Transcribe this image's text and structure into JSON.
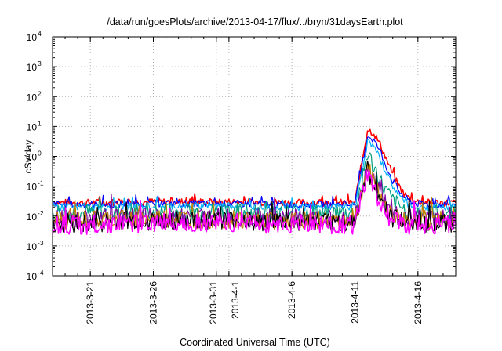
{
  "chart_data": {
    "type": "line",
    "title": "/data/run/goesPlots/archive/2013-04-17/flux/../bryn/31daysEarth.plot",
    "xlabel": "Coordinated Universal Time (UTC)",
    "ylabel": "cSv/day",
    "yscale": "log",
    "ylim": [
      0.0001,
      10000
    ],
    "grid": true,
    "x_start": "2013-03-18",
    "x_end": "2013-04-19",
    "x_ticks": [
      {
        "date": "2013-03-21",
        "label": "2013-3-21"
      },
      {
        "date": "2013-03-26",
        "label": "2013-3-26"
      },
      {
        "date": "2013-03-31",
        "label": "2013-3-31"
      },
      {
        "date": "2013-04-01",
        "label": "2013-4-1"
      },
      {
        "date": "2013-04-06",
        "label": "2013-4-6"
      },
      {
        "date": "2013-04-11",
        "label": "2013-4-11"
      },
      {
        "date": "2013-04-16",
        "label": "2013-4-16"
      }
    ],
    "y_ticks": [
      {
        "value": 0.0001,
        "base": "10",
        "exp": "-4"
      },
      {
        "value": 0.001,
        "base": "10",
        "exp": "-3"
      },
      {
        "value": 0.01,
        "base": "10",
        "exp": "-2"
      },
      {
        "value": 0.1,
        "base": "10",
        "exp": "-1"
      },
      {
        "value": 1,
        "base": "10",
        "exp": "0"
      },
      {
        "value": 10,
        "base": "10",
        "exp": "1"
      },
      {
        "value": 100,
        "base": "10",
        "exp": "2"
      },
      {
        "value": 1000,
        "base": "10",
        "exp": "3"
      },
      {
        "value": 10000,
        "base": "10",
        "exp": "4"
      }
    ],
    "series": [
      {
        "color": "#ff0000",
        "x": [
          "2013-03-18",
          "2013-03-21",
          "2013-03-26",
          "2013-04-01",
          "2013-04-06",
          "2013-04-11",
          "2013-04-12",
          "2013-04-12T12:00",
          "2013-04-13",
          "2013-04-13T12:00",
          "2013-04-14",
          "2013-04-14T12:00",
          "2013-04-15",
          "2013-04-15T12:00",
          "2013-04-16",
          "2013-04-17",
          "2013-04-18",
          "2013-04-19"
        ],
        "y": [
          0.028,
          0.028,
          0.03,
          0.03,
          0.028,
          0.028,
          8,
          6,
          2.5,
          0.8,
          0.25,
          0.1,
          0.05,
          0.035,
          0.03,
          0.028,
          0.028,
          0.028
        ]
      },
      {
        "color": "#0000ff",
        "x": [
          "2013-03-18",
          "2013-03-21",
          "2013-03-26",
          "2013-04-01",
          "2013-04-06",
          "2013-04-11",
          "2013-04-12",
          "2013-04-12T12:00",
          "2013-04-13",
          "2013-04-13T12:00",
          "2013-04-14",
          "2013-04-14T12:00",
          "2013-04-15",
          "2013-04-15T12:00",
          "2013-04-16",
          "2013-04-17",
          "2013-04-18",
          "2013-04-19"
        ],
        "y": [
          0.025,
          0.024,
          0.026,
          0.026,
          0.024,
          0.024,
          5,
          3.5,
          1.5,
          0.45,
          0.15,
          0.07,
          0.04,
          0.03,
          0.026,
          0.024,
          0.024,
          0.024
        ]
      },
      {
        "color": "#00b0ff",
        "x": [
          "2013-03-18",
          "2013-03-21",
          "2013-03-26",
          "2013-04-01",
          "2013-04-06",
          "2013-04-11",
          "2013-04-12",
          "2013-04-12T12:00",
          "2013-04-13",
          "2013-04-13T12:00",
          "2013-04-14",
          "2013-04-14T12:00",
          "2013-04-15",
          "2013-04-15T12:00",
          "2013-04-16",
          "2013-04-17",
          "2013-04-18",
          "2013-04-19"
        ],
        "y": [
          0.02,
          0.02,
          0.022,
          0.022,
          0.02,
          0.02,
          3,
          2,
          0.8,
          0.3,
          0.1,
          0.05,
          0.03,
          0.022,
          0.02,
          0.02,
          0.02,
          0.02
        ]
      },
      {
        "color": "#00a080",
        "x": [
          "2013-03-18",
          "2013-03-21",
          "2013-03-26",
          "2013-04-01",
          "2013-04-06",
          "2013-04-11",
          "2013-04-12",
          "2013-04-12T12:00",
          "2013-04-13",
          "2013-04-13T12:00",
          "2013-04-14",
          "2013-04-14T12:00",
          "2013-04-15",
          "2013-04-15T12:00",
          "2013-04-16",
          "2013-04-17",
          "2013-04-18",
          "2013-04-19"
        ],
        "y": [
          0.012,
          0.012,
          0.013,
          0.013,
          0.012,
          0.012,
          1.2,
          0.4,
          0.15,
          0.06,
          0.03,
          0.02,
          0.015,
          0.013,
          0.012,
          0.012,
          0.012,
          0.012
        ]
      },
      {
        "color": "#8000a0",
        "x": [
          "2013-03-18",
          "2013-03-21",
          "2013-03-26",
          "2013-04-01",
          "2013-04-06",
          "2013-04-11",
          "2013-04-12",
          "2013-04-12T12:00",
          "2013-04-13",
          "2013-04-13T12:00",
          "2013-04-14",
          "2013-04-14T12:00",
          "2013-04-15",
          "2013-04-15T12:00",
          "2013-04-16",
          "2013-04-17",
          "2013-04-18",
          "2013-04-19"
        ],
        "y": [
          0.008,
          0.008,
          0.009,
          0.009,
          0.008,
          0.008,
          0.5,
          0.2,
          0.06,
          0.025,
          0.012,
          0.009,
          0.008,
          0.008,
          0.008,
          0.008,
          0.008,
          0.008
        ]
      },
      {
        "color": "#c08000",
        "x": [
          "2013-03-18",
          "2013-03-21",
          "2013-03-26",
          "2013-04-01",
          "2013-04-06",
          "2013-04-11",
          "2013-04-12",
          "2013-04-12T12:00",
          "2013-04-13",
          "2013-04-13T12:00",
          "2013-04-14",
          "2013-04-14T12:00",
          "2013-04-15",
          "2013-04-15T12:00",
          "2013-04-16",
          "2013-04-17",
          "2013-04-18",
          "2013-04-19"
        ],
        "y": [
          0.007,
          0.007,
          0.008,
          0.008,
          0.007,
          0.007,
          0.4,
          0.15,
          0.05,
          0.02,
          0.01,
          0.008,
          0.007,
          0.007,
          0.007,
          0.007,
          0.007,
          0.007
        ]
      },
      {
        "color": "#000000",
        "x": [
          "2013-03-18",
          "2013-03-21",
          "2013-03-26",
          "2013-04-01",
          "2013-04-06",
          "2013-04-11",
          "2013-04-12",
          "2013-04-12T12:00",
          "2013-04-13",
          "2013-04-13T12:00",
          "2013-04-14",
          "2013-04-14T12:00",
          "2013-04-15",
          "2013-04-15T12:00",
          "2013-04-16",
          "2013-04-17",
          "2013-04-18",
          "2013-04-19"
        ],
        "y": [
          0.006,
          0.006,
          0.007,
          0.007,
          0.006,
          0.006,
          0.35,
          0.12,
          0.04,
          0.015,
          0.008,
          0.007,
          0.006,
          0.006,
          0.006,
          0.006,
          0.006,
          0.006
        ]
      },
      {
        "color": "#ff00ff",
        "x": [
          "2013-03-18",
          "2013-03-21",
          "2013-03-26",
          "2013-04-01",
          "2013-04-06",
          "2013-04-11",
          "2013-04-12",
          "2013-04-12T12:00",
          "2013-04-13",
          "2013-04-13T12:00",
          "2013-04-14",
          "2013-04-14T12:00",
          "2013-04-15",
          "2013-04-15T12:00",
          "2013-04-16",
          "2013-04-17",
          "2013-04-18",
          "2013-04-19"
        ],
        "y": [
          0.005,
          0.005,
          0.006,
          0.006,
          0.005,
          0.005,
          0.25,
          0.08,
          0.03,
          0.012,
          0.007,
          0.006,
          0.005,
          0.005,
          0.005,
          0.005,
          0.005,
          0.005
        ]
      }
    ]
  }
}
